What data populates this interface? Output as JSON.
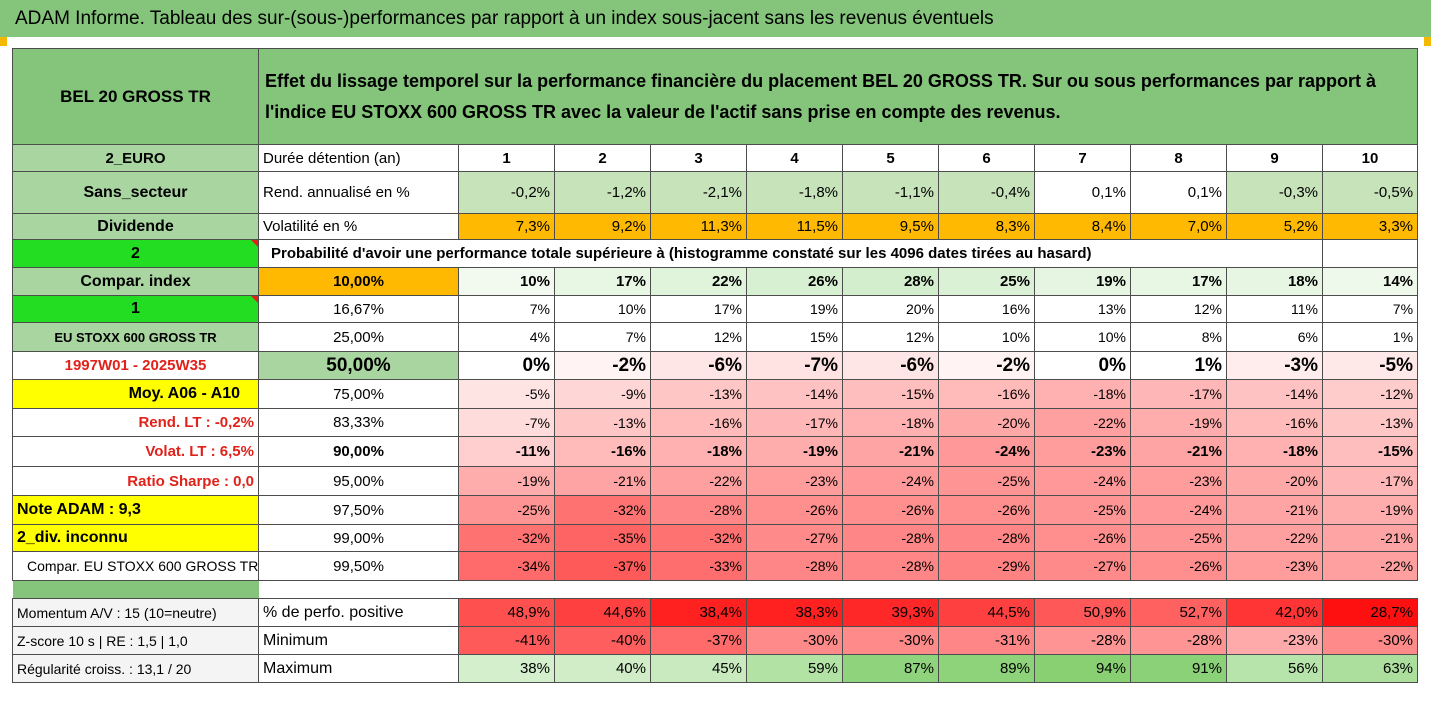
{
  "title": "ADAM Informe. Tableau des sur-(sous-)performances par rapport à un index sous-jacent sans les revenus éventuels",
  "header": {
    "asset": "BEL 20 GROSS TR",
    "description": "Effet du lissage temporel sur la performance financière du placement BEL 20 GROSS TR. Sur ou sous performances par rapport à l'indice EU STOXX 600 GROSS TR avec la valeur de l'actif sans prise en compte des revenus."
  },
  "duration_row": {
    "left": "2_EURO",
    "label": "Durée détention (an)",
    "values": [
      "1",
      "2",
      "3",
      "4",
      "5",
      "6",
      "7",
      "8",
      "9",
      "10"
    ]
  },
  "rend_row": {
    "left": "Sans_secteur",
    "label": "Rend. annualisé en %",
    "values": [
      "-0,2%",
      "-1,2%",
      "-2,1%",
      "-1,8%",
      "-1,1%",
      "-0,4%",
      "0,1%",
      "0,1%",
      "-0,3%",
      "-0,5%"
    ],
    "colors": [
      "#c6e3ba",
      "#c6e3ba",
      "#c6e3ba",
      "#c6e3ba",
      "#c6e3ba",
      "#c6e3ba",
      "#ffffff",
      "#ffffff",
      "#c6e3ba",
      "#c6e3ba"
    ]
  },
  "vol_row": {
    "left": "Dividende",
    "label": "Volatilité en %",
    "values": [
      "7,3%",
      "9,2%",
      "11,3%",
      "11,5%",
      "9,5%",
      "8,3%",
      "8,4%",
      "7,0%",
      "5,2%",
      "3,3%"
    ]
  },
  "prob_row": {
    "left": "2",
    "label": "Probabilité d'avoir une performance totale supérieure à (histogramme constaté sur les 4096 dates tirées au hasard)"
  },
  "rows": [
    {
      "left": "Compar. index",
      "pct": "10,00%",
      "values": [
        "10%",
        "17%",
        "22%",
        "26%",
        "28%",
        "25%",
        "19%",
        "17%",
        "18%",
        "14%"
      ],
      "colors": [
        "#f2faf0",
        "#e8f6e4",
        "#e0f3db",
        "#d8f0d2",
        "#d3eecc",
        "#dbf1d5",
        "#e6f5e2",
        "#e8f6e4",
        "#e7f6e3",
        "#eef8eb"
      ]
    },
    {
      "left": "1",
      "pct": "16,67%",
      "values": [
        "7%",
        "10%",
        "17%",
        "19%",
        "20%",
        "16%",
        "13%",
        "12%",
        "11%",
        "7%"
      ],
      "colors": [
        "#ffffff",
        "#ffffff",
        "#ffffff",
        "#ffffff",
        "#ffffff",
        "#ffffff",
        "#ffffff",
        "#ffffff",
        "#ffffff",
        "#ffffff"
      ]
    },
    {
      "left": "EU STOXX 600 GROSS TR",
      "pct": "25,00%",
      "values": [
        "4%",
        "7%",
        "12%",
        "15%",
        "12%",
        "10%",
        "10%",
        "8%",
        "6%",
        "1%"
      ],
      "colors": [
        "#ffffff",
        "#ffffff",
        "#ffffff",
        "#ffffff",
        "#ffffff",
        "#ffffff",
        "#ffffff",
        "#ffffff",
        "#ffffff",
        "#ffffff"
      ]
    },
    {
      "left": "1997W01 - 2025W35",
      "pct": "50,00%",
      "values": [
        "0%",
        "-2%",
        "-6%",
        "-7%",
        "-6%",
        "-2%",
        "0%",
        "1%",
        "-3%",
        "-5%"
      ],
      "colors": [
        "#ffffff",
        "#fff3f3",
        "#ffe6e6",
        "#ffe2e2",
        "#ffe6e6",
        "#fff3f3",
        "#ffffff",
        "#ffffff",
        "#ffeded",
        "#ffe8e8"
      ]
    },
    {
      "left": "Moy. A06 - A10",
      "pct": "75,00%",
      "values": [
        "-5%",
        "-9%",
        "-13%",
        "-14%",
        "-15%",
        "-16%",
        "-18%",
        "-17%",
        "-14%",
        "-12%"
      ],
      "colors": [
        "#ffe4e4",
        "#ffd6d6",
        "#ffc6c6",
        "#ffc2c2",
        "#ffbebe",
        "#ffbaba",
        "#ffb0b0",
        "#ffb6b6",
        "#ffc2c2",
        "#ffcccc"
      ]
    },
    {
      "left": "Rend. LT : -0,2%",
      "pct": "83,33%",
      "values": [
        "-7%",
        "-13%",
        "-16%",
        "-17%",
        "-18%",
        "-20%",
        "-22%",
        "-19%",
        "-16%",
        "-13%"
      ],
      "colors": [
        "#ffdcdc",
        "#ffc6c6",
        "#ffbaba",
        "#ffb6b6",
        "#ffb0b0",
        "#ffa8a8",
        "#ffa0a0",
        "#ffacac",
        "#ffbaba",
        "#ffc6c6"
      ]
    },
    {
      "left": "Volat. LT : 6,5%",
      "pct": "90,00%",
      "values": [
        "-11%",
        "-16%",
        "-18%",
        "-19%",
        "-21%",
        "-24%",
        "-23%",
        "-21%",
        "-18%",
        "-15%"
      ],
      "colors": [
        "#ffcece",
        "#ffbaba",
        "#ffb0b0",
        "#ffacac",
        "#ffa4a4",
        "#ff9898",
        "#ff9c9c",
        "#ffa4a4",
        "#ffb0b0",
        "#ffbebe"
      ]
    },
    {
      "left": "Ratio Sharpe : 0,0",
      "pct": "95,00%",
      "values": [
        "-19%",
        "-21%",
        "-22%",
        "-23%",
        "-24%",
        "-25%",
        "-24%",
        "-23%",
        "-20%",
        "-17%"
      ],
      "colors": [
        "#ffacac",
        "#ffa4a4",
        "#ffa0a0",
        "#ff9c9c",
        "#ff9898",
        "#ff9494",
        "#ff9898",
        "#ff9c9c",
        "#ffa8a8",
        "#ffb6b6"
      ]
    },
    {
      "left": "Note ADAM : 9,3",
      "pct": "97,50%",
      "values": [
        "-25%",
        "-32%",
        "-28%",
        "-26%",
        "-26%",
        "-26%",
        "-25%",
        "-24%",
        "-21%",
        "-19%"
      ],
      "colors": [
        "#ff9494",
        "#ff7272",
        "#ff8686",
        "#ff8e8e",
        "#ff8e8e",
        "#ff8e8e",
        "#ff9494",
        "#ff9898",
        "#ffa4a4",
        "#ffacac"
      ]
    },
    {
      "left": "2_div. inconnu",
      "pct": "99,00%",
      "values": [
        "-32%",
        "-35%",
        "-32%",
        "-27%",
        "-28%",
        "-28%",
        "-26%",
        "-25%",
        "-22%",
        "-21%"
      ],
      "colors": [
        "#ff7272",
        "#ff6464",
        "#ff7272",
        "#ff8a8a",
        "#ff8686",
        "#ff8686",
        "#ff8e8e",
        "#ff9494",
        "#ffa0a0",
        "#ffa4a4"
      ]
    },
    {
      "left": "Compar. EU STOXX 600 GROSS TR",
      "pct": "99,50%",
      "values": [
        "-34%",
        "-37%",
        "-33%",
        "-28%",
        "-28%",
        "-29%",
        "-27%",
        "-26%",
        "-23%",
        "-22%"
      ],
      "colors": [
        "#ff6a6a",
        "#ff5a5a",
        "#ff6e6e",
        "#ff8686",
        "#ff8686",
        "#ff8282",
        "#ff8a8a",
        "#ff8e8e",
        "#ff9c9c",
        "#ffa0a0"
      ]
    }
  ],
  "footer_rows": [
    {
      "left": "Momentum A/V : 15 (10=neutre)",
      "label": "% de perfo. positive",
      "values": [
        "48,9%",
        "44,6%",
        "38,4%",
        "38,3%",
        "39,3%",
        "44,5%",
        "50,9%",
        "52,7%",
        "42,0%",
        "28,7%"
      ],
      "colors": [
        "#ff5050",
        "#ff4040",
        "#ff2020",
        "#ff2020",
        "#ff2828",
        "#ff4040",
        "#ff5858",
        "#ff6060",
        "#ff3434",
        "#ff1010"
      ]
    },
    {
      "left": "Z-score 10 s | RE : 1,5 | 1,0",
      "label": "Minimum",
      "values": [
        "-41%",
        "-40%",
        "-37%",
        "-30%",
        "-30%",
        "-31%",
        "-28%",
        "-28%",
        "-23%",
        "-30%"
      ],
      "colors": [
        "#ff5a5a",
        "#ff5e5e",
        "#ff6a6a",
        "#ff8a8a",
        "#ff8a8a",
        "#ff8686",
        "#ff9494",
        "#ff9494",
        "#ffaaaa",
        "#ff8a8a"
      ]
    },
    {
      "left": "Régularité croiss. : 13,1 / 20",
      "label": "Maximum",
      "values": [
        "38%",
        "40%",
        "45%",
        "59%",
        "87%",
        "89%",
        "94%",
        "91%",
        "56%",
        "63%"
      ],
      "colors": [
        "#d4efcc",
        "#d0edc7",
        "#c9eabf",
        "#b3e2a5",
        "#8fd37c",
        "#8ed27a",
        "#88d072",
        "#8bd177",
        "#b7e4aa",
        "#acdf9d"
      ]
    }
  ]
}
